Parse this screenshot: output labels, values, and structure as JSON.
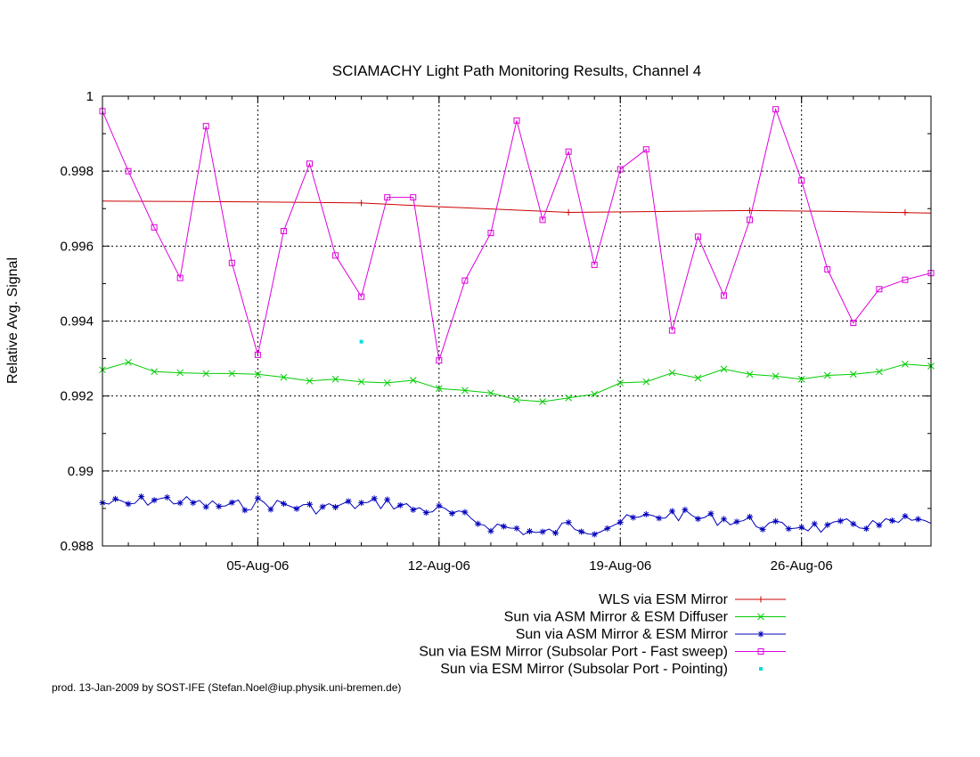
{
  "chart_data": {
    "type": "line",
    "title": "SCIAMACHY Light Path Monitoring Results, Channel 4",
    "ylabel": "Relative Avg. Signal",
    "xlabel": "",
    "xlim": [
      "2006-07-30",
      "2006-08-31"
    ],
    "ylim": [
      0.988,
      1.0
    ],
    "yticks": [
      "0.988",
      "0.99",
      "0.992",
      "0.994",
      "0.996",
      "0.998",
      "1"
    ],
    "xticks": [
      {
        "date": "2006-08-05",
        "label": "05-Aug-06"
      },
      {
        "date": "2006-08-12",
        "label": "12-Aug-06"
      },
      {
        "date": "2006-08-19",
        "label": "19-Aug-06"
      },
      {
        "date": "2006-08-26",
        "label": "26-Aug-06"
      }
    ],
    "grid": true,
    "legend_position": "bottom-right",
    "footer": "prod. 13-Jan-2009 by SOST-IFE (Stefan.Noel@iup.physik.uni-bremen.de)",
    "series": [
      {
        "name": "WLS via ESM Mirror",
        "color": "#cc0000",
        "marker": "plus",
        "marker_points": [
          [
            "2006-08-09",
            0.99715
          ],
          [
            "2006-08-17",
            0.9969
          ],
          [
            "2006-08-24",
            0.99695
          ],
          [
            "2006-08-30",
            0.9969
          ]
        ],
        "x": [
          "2006-07-30",
          "2006-08-05",
          "2006-08-09",
          "2006-08-12",
          "2006-08-17",
          "2006-08-24",
          "2006-08-27",
          "2006-08-31"
        ],
        "y": [
          0.9972,
          0.99718,
          0.99715,
          0.99705,
          0.9969,
          0.99695,
          0.99693,
          0.99688
        ]
      },
      {
        "name": "Sun via ASM Mirror & ESM Diffuser",
        "color": "#00cc00",
        "marker": "cross",
        "x": [
          "2006-07-30",
          "2006-07-31",
          "2006-08-01",
          "2006-08-02",
          "2006-08-03",
          "2006-08-04",
          "2006-08-05",
          "2006-08-06",
          "2006-08-07",
          "2006-08-08",
          "2006-08-09",
          "2006-08-10",
          "2006-08-11",
          "2006-08-12",
          "2006-08-13",
          "2006-08-14",
          "2006-08-15",
          "2006-08-16",
          "2006-08-17",
          "2006-08-18",
          "2006-08-19",
          "2006-08-20",
          "2006-08-21",
          "2006-08-22",
          "2006-08-23",
          "2006-08-24",
          "2006-08-25",
          "2006-08-26",
          "2006-08-27",
          "2006-08-28",
          "2006-08-29",
          "2006-08-30",
          "2006-08-31"
        ],
        "y": [
          0.9927,
          0.9929,
          0.99265,
          0.99262,
          0.9926,
          0.9926,
          0.99258,
          0.9925,
          0.9924,
          0.99245,
          0.99238,
          0.99235,
          0.99242,
          0.9922,
          0.99215,
          0.99208,
          0.9919,
          0.99185,
          0.99195,
          0.99205,
          0.99235,
          0.99238,
          0.99262,
          0.99248,
          0.99272,
          0.99258,
          0.99253,
          0.99245,
          0.99255,
          0.99258,
          0.99265,
          0.99285,
          0.9928
        ]
      },
      {
        "name": "Sun via ASM Mirror & ESM Mirror",
        "color": "#0000bb",
        "marker": "star",
        "x": [
          "2006-07-30",
          "2006-07-31",
          "2006-08-01",
          "2006-08-02",
          "2006-08-03",
          "2006-08-04",
          "2006-08-05",
          "2006-08-06",
          "2006-08-07",
          "2006-08-08",
          "2006-08-09",
          "2006-08-10",
          "2006-08-11",
          "2006-08-12",
          "2006-08-13",
          "2006-08-14",
          "2006-08-15",
          "2006-08-16",
          "2006-08-17",
          "2006-08-18",
          "2006-08-19",
          "2006-08-20",
          "2006-08-21",
          "2006-08-22",
          "2006-08-23",
          "2006-08-24",
          "2006-08-25",
          "2006-08-26",
          "2006-08-27",
          "2006-08-28",
          "2006-08-29",
          "2006-08-30",
          "2006-08-31"
        ],
        "y": [
          0.98915,
          0.9891,
          0.98925,
          0.9892,
          0.9891,
          0.98905,
          0.98915,
          0.9891,
          0.989,
          0.98905,
          0.9891,
          0.98915,
          0.989,
          0.98895,
          0.98875,
          0.98855,
          0.98845,
          0.9883,
          0.98855,
          0.98845,
          0.98865,
          0.98875,
          0.98885,
          0.98875,
          0.9887,
          0.98865,
          0.9885,
          0.98855,
          0.98845,
          0.9886,
          0.98855,
          0.98865,
          0.9886
        ]
      },
      {
        "name": "Sun via ESM Mirror (Subsolar Port - Fast sweep)",
        "color": "#dd00dd",
        "marker": "square",
        "x": [
          "2006-07-30",
          "2006-07-31",
          "2006-08-01",
          "2006-08-02",
          "2006-08-03",
          "2006-08-04",
          "2006-08-05",
          "2006-08-06",
          "2006-08-07",
          "2006-08-08",
          "2006-08-09",
          "2006-08-10",
          "2006-08-11",
          "2006-08-12",
          "2006-08-13",
          "2006-08-14",
          "2006-08-15",
          "2006-08-16",
          "2006-08-17",
          "2006-08-18",
          "2006-08-19",
          "2006-08-20",
          "2006-08-21",
          "2006-08-22",
          "2006-08-23",
          "2006-08-24",
          "2006-08-25",
          "2006-08-26",
          "2006-08-27",
          "2006-08-28",
          "2006-08-29",
          "2006-08-30",
          "2006-08-31"
        ],
        "y": [
          0.9996,
          0.998,
          0.9965,
          0.99515,
          0.9992,
          0.99555,
          0.9931,
          0.9964,
          0.9982,
          0.99575,
          0.99465,
          0.9973,
          0.9973,
          0.99295,
          0.99508,
          0.99635,
          0.99935,
          0.9967,
          0.99852,
          0.9955,
          0.99805,
          0.99858,
          0.99375,
          0.99625,
          0.99468,
          0.9967,
          0.99965,
          0.99775,
          0.99538,
          0.99395,
          0.99485,
          0.9951,
          0.99528
        ]
      },
      {
        "name": "Sun via ESM Mirror (Subsolar Port - Pointing)",
        "color": "#00dddd",
        "marker": "dot",
        "x": [
          "2006-08-09"
        ],
        "y": [
          0.99345
        ]
      }
    ]
  }
}
